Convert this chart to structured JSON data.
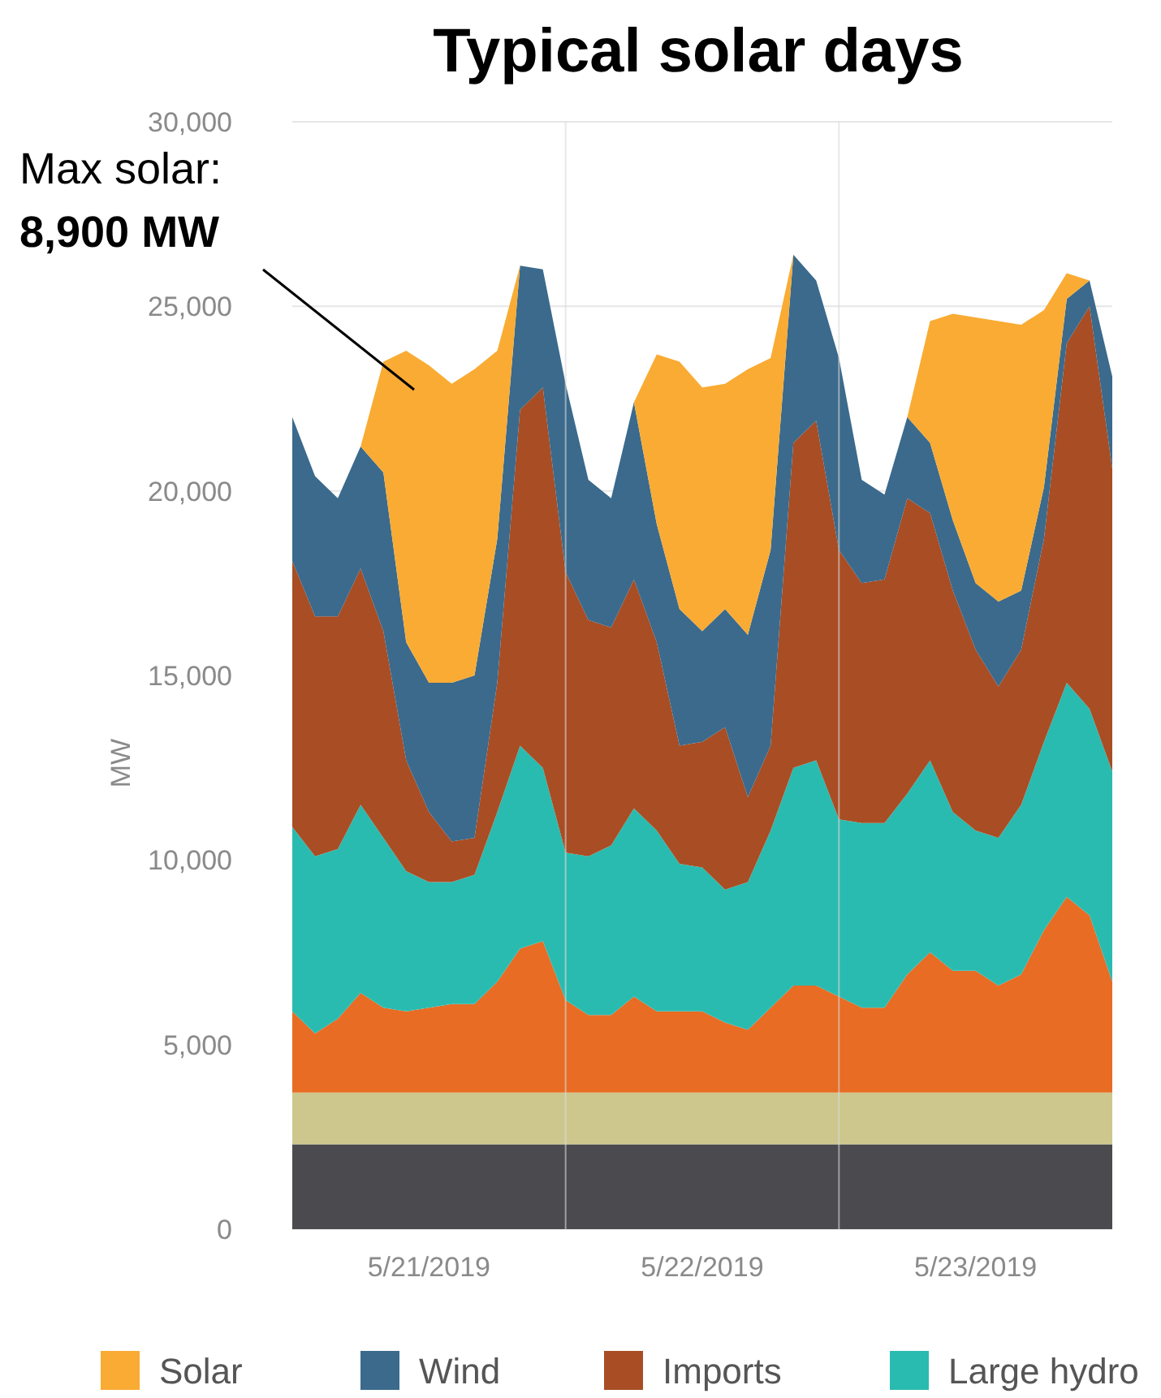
{
  "chart_data": {
    "type": "area",
    "stacked": true,
    "title": "Typical solar days",
    "ylabel": "MW",
    "x": [
      "2019-05-21T00:00",
      "2019-05-21T02:00",
      "2019-05-21T04:00",
      "2019-05-21T06:00",
      "2019-05-21T08:00",
      "2019-05-21T10:00",
      "2019-05-21T12:00",
      "2019-05-21T14:00",
      "2019-05-21T16:00",
      "2019-05-21T18:00",
      "2019-05-21T20:00",
      "2019-05-21T22:00",
      "2019-05-22T00:00",
      "2019-05-22T02:00",
      "2019-05-22T04:00",
      "2019-05-22T06:00",
      "2019-05-22T08:00",
      "2019-05-22T10:00",
      "2019-05-22T12:00",
      "2019-05-22T14:00",
      "2019-05-22T16:00",
      "2019-05-22T18:00",
      "2019-05-22T20:00",
      "2019-05-22T22:00",
      "2019-05-23T00:00",
      "2019-05-23T02:00",
      "2019-05-23T04:00",
      "2019-05-23T06:00",
      "2019-05-23T08:00",
      "2019-05-23T10:00",
      "2019-05-23T12:00",
      "2019-05-23T14:00",
      "2019-05-23T16:00",
      "2019-05-23T18:00",
      "2019-05-23T20:00",
      "2019-05-23T22:00",
      "2019-05-24T00:00"
    ],
    "series": [
      {
        "color": "#4a4a4f",
        "values": [
          2300,
          2300,
          2300,
          2300,
          2300,
          2300,
          2300,
          2300,
          2300,
          2300,
          2300,
          2300,
          2300,
          2300,
          2300,
          2300,
          2300,
          2300,
          2300,
          2300,
          2300,
          2300,
          2300,
          2300,
          2300,
          2300,
          2300,
          2300,
          2300,
          2300,
          2300,
          2300,
          2300,
          2300,
          2300,
          2300,
          2300
        ]
      },
      {
        "color": "#cdc78e",
        "values": [
          1400,
          1400,
          1400,
          1400,
          1400,
          1400,
          1400,
          1400,
          1400,
          1400,
          1400,
          1400,
          1400,
          1400,
          1400,
          1400,
          1400,
          1400,
          1400,
          1400,
          1400,
          1400,
          1400,
          1400,
          1400,
          1400,
          1400,
          1400,
          1400,
          1400,
          1400,
          1400,
          1400,
          1400,
          1400,
          1400,
          1400
        ]
      },
      {
        "color": "#e86c24",
        "values": [
          2200,
          1600,
          2000,
          2700,
          2300,
          2200,
          2300,
          2400,
          2400,
          3000,
          3900,
          4100,
          2500,
          2100,
          2100,
          2600,
          2200,
          2200,
          2200,
          1900,
          1700,
          2300,
          2900,
          2900,
          2600,
          2300,
          2300,
          3200,
          3800,
          3300,
          3300,
          2900,
          3200,
          4400,
          5300,
          4800,
          3000
        ]
      },
      {
        "name": "Large hydro",
        "color": "#2abbb0",
        "values": [
          5000,
          4800,
          4600,
          5100,
          4600,
          3800,
          3400,
          3300,
          3500,
          4600,
          5500,
          4700,
          4000,
          4300,
          4600,
          5100,
          4900,
          4000,
          3900,
          3600,
          4000,
          4800,
          5900,
          6100,
          4800,
          5000,
          5000,
          4900,
          5200,
          4300,
          3800,
          4000,
          4600,
          5100,
          5800,
          5600,
          5700
        ]
      },
      {
        "name": "Imports",
        "color": "#a94d24",
        "values": [
          7200,
          6500,
          6300,
          6400,
          5600,
          3000,
          1900,
          1100,
          1000,
          3500,
          9100,
          10300,
          7600,
          6400,
          5900,
          6200,
          5100,
          3200,
          3400,
          4400,
          2300,
          2300,
          8800,
          9200,
          7300,
          6500,
          6600,
          8000,
          6700,
          6000,
          4900,
          4100,
          4200,
          5500,
          9200,
          10900,
          8200
        ]
      },
      {
        "name": "Wind",
        "color": "#3b6a8c",
        "values": [
          3900,
          3800,
          3200,
          3300,
          4300,
          3200,
          3500,
          4300,
          4400,
          3900,
          3900,
          3200,
          5100,
          3800,
          3500,
          4800,
          3200,
          3700,
          3000,
          3200,
          4400,
          5300,
          5100,
          3800,
          5200,
          2800,
          2300,
          2200,
          1900,
          1900,
          1800,
          2300,
          1600,
          1400,
          1200,
          700,
          2500
        ]
      },
      {
        "name": "Solar",
        "color": "#f9ab33",
        "values": [
          0,
          0,
          0,
          0,
          3000,
          7900,
          8600,
          8100,
          8300,
          5100,
          0,
          0,
          0,
          0,
          0,
          0,
          4600,
          6700,
          6600,
          6100,
          7200,
          5200,
          0,
          0,
          0,
          0,
          0,
          0,
          3300,
          5600,
          7200,
          7600,
          7200,
          4800,
          700,
          0,
          0
        ]
      }
    ],
    "xlim": [
      "2019-05-21T00:00",
      "2019-05-24T00:00"
    ],
    "xticks": [
      {
        "value": "2019-05-21T12:00",
        "label": "5/21/2019"
      },
      {
        "value": "2019-05-22T12:00",
        "label": "5/22/2019"
      },
      {
        "value": "2019-05-23T12:00",
        "label": "5/23/2019"
      }
    ],
    "ylim": [
      0,
      30000
    ],
    "yticks": [
      {
        "value": 0,
        "label": "0"
      },
      {
        "value": 5000,
        "label": "5,000"
      },
      {
        "value": 10000,
        "label": "10,000"
      },
      {
        "value": 15000,
        "label": "15,000"
      },
      {
        "value": 20000,
        "label": "20,000"
      },
      {
        "value": 25000,
        "label": "25,000"
      },
      {
        "value": 30000,
        "label": "30,000"
      }
    ],
    "grid": "y",
    "ref_lines": [
      {
        "axis": "x",
        "value": "2019-05-22T00:00",
        "color": "#d8d8d8"
      },
      {
        "axis": "x",
        "value": "2019-05-23T00:00",
        "color": "#d8d8d8"
      }
    ],
    "annotations": [
      "Max solar: 8,900 MW"
    ],
    "legend": "bottom"
  }
}
